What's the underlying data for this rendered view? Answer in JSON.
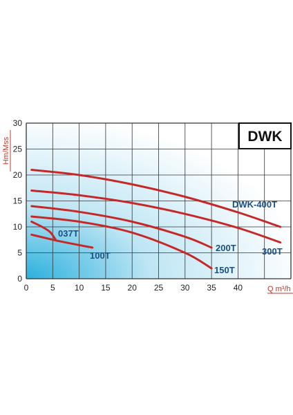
{
  "chart_data": {
    "type": "line",
    "title": "DWK",
    "xlabel": "Q m³/h",
    "ylabel": "Hm/Mss",
    "xlim": [
      0,
      50
    ],
    "ylim": [
      0,
      30
    ],
    "x_ticks": [
      "0",
      "5",
      "10",
      "15",
      "20",
      "25",
      "30",
      "35",
      "40"
    ],
    "y_ticks": [
      "0",
      "5",
      "10",
      "15",
      "20",
      "25",
      "30"
    ],
    "grid": true,
    "colors": {
      "line": "#c62828",
      "label": "#1a4f86",
      "axis_title": "#c0392b",
      "grid": "#333333",
      "gradient_from": "#2ab0dd",
      "gradient_to": "#ffffff"
    },
    "series": [
      {
        "name": "DWK-400T",
        "x": [
          1,
          10,
          20,
          30,
          40,
          48
        ],
        "y": [
          21,
          20,
          18.2,
          15.8,
          12.8,
          10
        ]
      },
      {
        "name": "300T",
        "x": [
          1,
          10,
          20,
          30,
          40,
          48
        ],
        "y": [
          17,
          16.1,
          14.6,
          12.5,
          9.8,
          7
        ]
      },
      {
        "name": "200T",
        "x": [
          1,
          10,
          20,
          30,
          35
        ],
        "y": [
          14,
          12.9,
          11,
          8.1,
          6
        ]
      },
      {
        "name": "150T",
        "x": [
          1,
          10,
          20,
          30,
          35
        ],
        "y": [
          12,
          11,
          8.9,
          5,
          2
        ]
      },
      {
        "name": "037T",
        "x": [
          1,
          3,
          4.5,
          5.5
        ],
        "y": [
          11,
          10,
          9,
          7.6
        ]
      },
      {
        "name": "100T",
        "x": [
          1,
          6,
          12.5
        ],
        "y": [
          8.5,
          7.3,
          6
        ]
      }
    ]
  }
}
